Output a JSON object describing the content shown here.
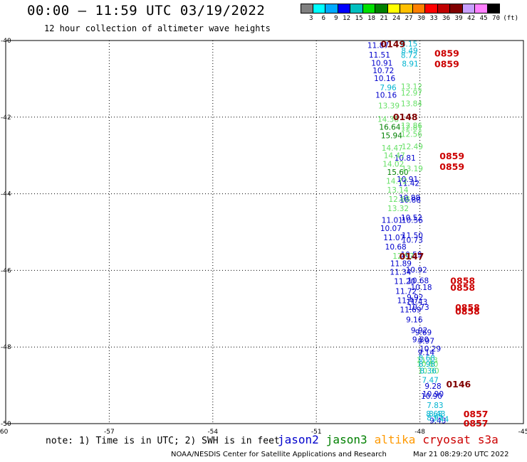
{
  "header": {
    "title": "00:00 – 11:59 UTC 03/19/2022",
    "subtitle": "12 hour collection of altimeter wave heights"
  },
  "color_scale": {
    "colors": [
      "#808080",
      "#00ffff",
      "#00aaff",
      "#0000ff",
      "#00bfbf",
      "#00e000",
      "#008000",
      "#ffff00",
      "#ffc000",
      "#ff8000",
      "#ff0000",
      "#c00000",
      "#800000",
      "#c8a0ff",
      "#ff80ff",
      "#000000"
    ],
    "labels": [
      "3",
      "6",
      "9",
      "12",
      "15",
      "18",
      "21",
      "24",
      "27",
      "30",
      "33",
      "36",
      "39",
      "42",
      "45",
      "70",
      "(ft)"
    ]
  },
  "chart_data": {
    "type": "scatter",
    "title": "00:00 – 11:59 UTC 03/19/2022",
    "subtitle": "12 hour collection of altimeter wave heights",
    "xlim": [
      -60,
      -45
    ],
    "ylim": [
      -50,
      -40
    ],
    "x_ticks": [
      "-60",
      "-57",
      "-54",
      "-51",
      "-48",
      "-45"
    ],
    "y_ticks": [
      "-40",
      "-42",
      "-44",
      "-46",
      "-48",
      "-50"
    ],
    "grid": true,
    "series": [
      {
        "name": "jason2",
        "color": "#0000cc",
        "points": [
          {
            "lon": -49.21,
            "lat": -40.12,
            "label": "11.87"
          },
          {
            "lon": -49.17,
            "lat": -40.37,
            "label": "11.51"
          },
          {
            "lon": -49.1,
            "lat": -40.58,
            "label": "10.91"
          },
          {
            "lon": -49.06,
            "lat": -40.78,
            "label": "10.72"
          },
          {
            "lon": -49.02,
            "lat": -40.98,
            "label": "10.16"
          },
          {
            "lon": -48.98,
            "lat": -41.42,
            "label": "10.16"
          },
          {
            "lon": -48.43,
            "lat": -43.06,
            "label": "10.81"
          },
          {
            "lon": -48.36,
            "lat": -43.62,
            "label": "10.91"
          },
          {
            "lon": -48.32,
            "lat": -43.72,
            "label": "11.42"
          },
          {
            "lon": -48.3,
            "lat": -44.1,
            "label": "10.88"
          },
          {
            "lon": -48.28,
            "lat": -44.16,
            "label": "10.88"
          },
          {
            "lon": -48.24,
            "lat": -44.62,
            "label": "10.52"
          },
          {
            "lon": -48.22,
            "lat": -44.68,
            "label": "10.56"
          },
          {
            "lon": -48.8,
            "lat": -44.68,
            "label": "11.01"
          },
          {
            "lon": -48.84,
            "lat": -44.9,
            "label": "10.07"
          },
          {
            "lon": -48.75,
            "lat": -45.14,
            "label": "11.07"
          },
          {
            "lon": -48.7,
            "lat": -45.38,
            "label": "10.68"
          },
          {
            "lon": -48.22,
            "lat": -45.08,
            "label": "11.50"
          },
          {
            "lon": -48.22,
            "lat": -45.2,
            "label": "10.73"
          },
          {
            "lon": -48.25,
            "lat": -45.58,
            "label": "10.59"
          },
          {
            "lon": -48.55,
            "lat": -45.82,
            "label": "11.89"
          },
          {
            "lon": -48.56,
            "lat": -46.04,
            "label": "11.34"
          },
          {
            "lon": -48.1,
            "lat": -45.98,
            "label": "10.92"
          },
          {
            "lon": -48.44,
            "lat": -46.28,
            "label": "11.20"
          },
          {
            "lon": -48.05,
            "lat": -46.26,
            "label": "10.68"
          },
          {
            "lon": -47.96,
            "lat": -46.44,
            "label": "10.18"
          },
          {
            "lon": -48.4,
            "lat": -46.54,
            "label": "11.72"
          },
          {
            "lon": -48.14,
            "lat": -46.7,
            "label": "9.92"
          },
          {
            "lon": -48.35,
            "lat": -46.78,
            "label": "11.47"
          },
          {
            "lon": -48.09,
            "lat": -46.82,
            "label": "11.43"
          },
          {
            "lon": -48.04,
            "lat": -46.96,
            "label": "10.73"
          },
          {
            "lon": -48.27,
            "lat": -47.02,
            "label": "11.69"
          },
          {
            "lon": -48.16,
            "lat": -47.28,
            "label": "9.16"
          },
          {
            "lon": -48.02,
            "lat": -47.56,
            "label": "9.92"
          },
          {
            "lon": -47.9,
            "lat": -47.62,
            "label": "9.69"
          },
          {
            "lon": -47.98,
            "lat": -47.8,
            "label": "9.80"
          },
          {
            "lon": -47.82,
            "lat": -47.84,
            "label": "9.97"
          },
          {
            "lon": -47.7,
            "lat": -48.04,
            "label": "10.29"
          },
          {
            "lon": -47.82,
            "lat": -48.14,
            "label": "9.14"
          },
          {
            "lon": -47.62,
            "lat": -49.02,
            "label": "9.28"
          },
          {
            "lon": -47.62,
            "lat": -49.22,
            "label": "10.90"
          },
          {
            "lon": -47.66,
            "lat": -49.28,
            "label": "10.90"
          },
          {
            "lon": -47.48,
            "lat": -49.92,
            "label": "9.43"
          }
        ]
      },
      {
        "name": "jason3",
        "color": "#008000",
        "points": [
          {
            "lon": -48.87,
            "lat": -42.25,
            "label": "16.64"
          },
          {
            "lon": -48.82,
            "lat": -42.48,
            "label": "15.94"
          },
          {
            "lon": -48.64,
            "lat": -43.43,
            "label": "15.60"
          }
        ]
      },
      {
        "name": "s3a",
        "color": "#cc0000",
        "points": [
          {
            "lon": -47.22,
            "lat": -40.34,
            "label": "0859"
          },
          {
            "lon": -47.22,
            "lat": -40.62,
            "label": "0859"
          },
          {
            "lon": -47.07,
            "lat": -43.02,
            "label": "0859"
          },
          {
            "lon": -47.07,
            "lat": -43.3,
            "label": "0859"
          },
          {
            "lon": -46.76,
            "lat": -46.28,
            "label": "0858"
          },
          {
            "lon": -46.76,
            "lat": -46.46,
            "label": "0858"
          },
          {
            "lon": -46.62,
            "lat": -46.98,
            "label": "0858"
          },
          {
            "lon": -46.62,
            "lat": -47.08,
            "label": "0858"
          },
          {
            "lon": -46.38,
            "lat": -49.76,
            "label": "0857"
          },
          {
            "lon": -46.38,
            "lat": -50.0,
            "label": "0857"
          }
        ]
      },
      {
        "name": "unlabeled-light-green",
        "color": "#66e066",
        "points": [
          {
            "lon": -48.24,
            "lat": -41.2,
            "label": "13.12"
          },
          {
            "lon": -48.24,
            "lat": -41.36,
            "label": "12.97"
          },
          {
            "lon": -48.9,
            "lat": -41.7,
            "label": "13.39"
          },
          {
            "lon": -48.24,
            "lat": -41.64,
            "label": "13.84"
          },
          {
            "lon": -48.92,
            "lat": -42.05,
            "label": "14.38"
          },
          {
            "lon": -48.24,
            "lat": -42.22,
            "label": "12.86"
          },
          {
            "lon": -48.24,
            "lat": -42.27,
            "label": "12.81"
          },
          {
            "lon": -48.24,
            "lat": -42.44,
            "label": "12.56"
          },
          {
            "lon": -48.8,
            "lat": -42.8,
            "label": "14.47"
          },
          {
            "lon": -48.22,
            "lat": -42.76,
            "label": "12.49"
          },
          {
            "lon": -48.74,
            "lat": -43.0,
            "label": "14.47"
          },
          {
            "lon": -48.77,
            "lat": -43.22,
            "label": "14.02"
          },
          {
            "lon": -48.22,
            "lat": -43.34,
            "label": "13.19"
          },
          {
            "lon": -48.67,
            "lat": -43.66,
            "label": "14.72"
          },
          {
            "lon": -48.64,
            "lat": -43.9,
            "label": "13.14"
          },
          {
            "lon": -48.6,
            "lat": -44.14,
            "label": "12.68"
          },
          {
            "lon": -48.63,
            "lat": -44.38,
            "label": "13.32"
          },
          {
            "lon": -48.48,
            "lat": -45.62,
            "label": "12.57"
          },
          {
            "lon": -47.79,
            "lat": -48.34,
            "label": "11.13"
          },
          {
            "lon": -47.78,
            "lat": -48.44,
            "label": "10.80"
          },
          {
            "lon": -47.75,
            "lat": -48.62,
            "label": "10.30"
          }
        ]
      },
      {
        "name": "unlabeled-cyan",
        "color": "#00b4d0",
        "points": [
          {
            "lon": -48.31,
            "lat": -40.08,
            "label": "8.15"
          },
          {
            "lon": -48.3,
            "lat": -40.26,
            "label": "8.49"
          },
          {
            "lon": -48.31,
            "lat": -40.38,
            "label": "8.72"
          },
          {
            "lon": -48.92,
            "lat": -41.22,
            "label": "7.96"
          },
          {
            "lon": -48.28,
            "lat": -40.6,
            "label": "8.91"
          },
          {
            "lon": -47.8,
            "lat": -48.28,
            "label": "8.68"
          },
          {
            "lon": -47.8,
            "lat": -48.44,
            "label": "8.98"
          },
          {
            "lon": -47.76,
            "lat": -48.62,
            "label": "8.36"
          },
          {
            "lon": -47.7,
            "lat": -48.86,
            "label": "7.47"
          },
          {
            "lon": -47.56,
            "lat": -49.52,
            "label": "7.83"
          },
          {
            "lon": -47.58,
            "lat": -49.74,
            "label": "8.68"
          },
          {
            "lon": -47.5,
            "lat": -49.74,
            "label": "8.43"
          },
          {
            "lon": -47.56,
            "lat": -49.84,
            "label": "8.91"
          },
          {
            "lon": -47.4,
            "lat": -49.88,
            "label": "7.44"
          }
        ]
      },
      {
        "name": "unlabeled-dark-red",
        "color": "#800000",
        "points": [
          {
            "lon": -48.78,
            "lat": -40.1,
            "label": "0149"
          },
          {
            "lon": -48.42,
            "lat": -42.0,
            "label": "0148"
          },
          {
            "lon": -48.24,
            "lat": -45.64,
            "label": "0147"
          },
          {
            "lon": -46.88,
            "lat": -48.98,
            "label": "0146"
          }
        ]
      }
    ]
  },
  "footer": {
    "note": "note: 1) Time is in UTC; 2) SWH is in feet",
    "legend": [
      {
        "label": "jason2",
        "color": "#0000cc"
      },
      {
        "label": "jason3",
        "color": "#008000"
      },
      {
        "label": "altika",
        "color": "#ff9900"
      },
      {
        "label": "cryosat",
        "color": "#cc0000"
      },
      {
        "label": "s3a",
        "color": "#cc0000"
      }
    ],
    "credit": "NOAA/NESDIS Center for Satellite Applications and Research",
    "timestamp": "Mar 21 08:29:20 UTC 2022"
  }
}
